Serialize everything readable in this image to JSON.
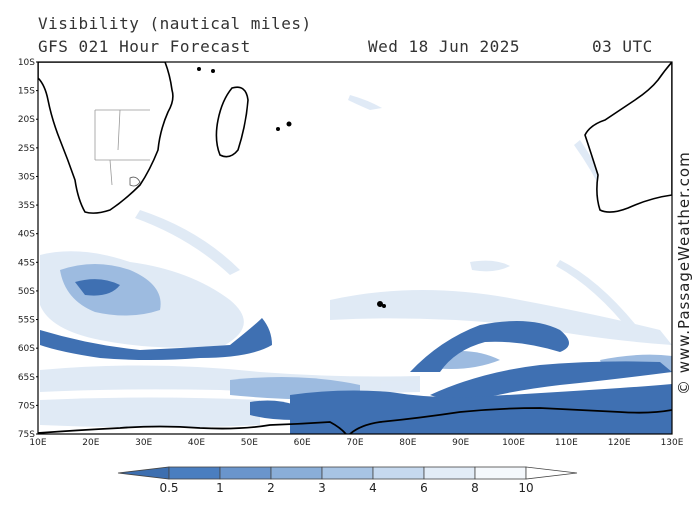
{
  "header": {
    "title": "Visibility (nautical miles)",
    "model": "GFS 021 Hour Forecast",
    "date": "Wed 18 Jun 2025",
    "time": "03 UTC"
  },
  "map": {
    "lat_labels": [
      "10S",
      "15S",
      "20S",
      "25S",
      "30S",
      "35S",
      "40S",
      "45S",
      "50S",
      "55S",
      "60S",
      "65S",
      "70S",
      "75S"
    ],
    "lon_labels": [
      "10E",
      "20E",
      "30E",
      "40E",
      "50E",
      "60E",
      "70E",
      "80E",
      "90E",
      "100E",
      "110E",
      "120E",
      "130E"
    ],
    "lat_range": [
      -10,
      -75
    ],
    "lon_range": [
      10,
      130
    ],
    "land_color": "#ffffff",
    "coast_color": "#000000"
  },
  "credit": "© www.PassageWeather.com",
  "colorbar": {
    "labels": [
      "0.5",
      "1",
      "2",
      "3",
      "4",
      "6",
      "8",
      "10"
    ],
    "colors": [
      "#3d6fb0",
      "#4a7ec0",
      "#6a95cc",
      "#8aaed8",
      "#a8c4e4",
      "#c6d9ef",
      "#e2ecf7",
      "#f4f8fc",
      "#ffffff"
    ]
  }
}
